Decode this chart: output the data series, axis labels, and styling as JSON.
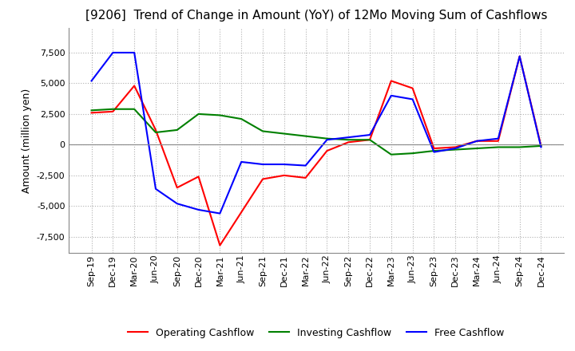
{
  "title": "[9206]  Trend of Change in Amount (YoY) of 12Mo Moving Sum of Cashflows",
  "ylabel": "Amount (million yen)",
  "x_labels": [
    "Sep-19",
    "Dec-19",
    "Mar-20",
    "Jun-20",
    "Sep-20",
    "Dec-20",
    "Mar-21",
    "Jun-21",
    "Sep-21",
    "Dec-21",
    "Mar-22",
    "Jun-22",
    "Sep-22",
    "Dec-22",
    "Mar-23",
    "Jun-23",
    "Sep-23",
    "Dec-23",
    "Mar-24",
    "Jun-24",
    "Sep-24",
    "Dec-24"
  ],
  "operating": [
    2600,
    2700,
    4800,
    1200,
    -3500,
    -2600,
    -8200,
    -5500,
    -2800,
    -2500,
    -2700,
    -500,
    200,
    400,
    5200,
    4600,
    -300,
    -200,
    300,
    300,
    7200,
    -100
  ],
  "investing": [
    2800,
    2900,
    2900,
    1000,
    1200,
    2500,
    2400,
    2100,
    1100,
    900,
    700,
    500,
    400,
    400,
    -800,
    -700,
    -500,
    -400,
    -300,
    -200,
    -200,
    -100
  ],
  "free": [
    5200,
    7500,
    7500,
    -3600,
    -4800,
    -5300,
    -5600,
    -1400,
    -1600,
    -1600,
    -1700,
    400,
    600,
    800,
    4000,
    3700,
    -600,
    -300,
    300,
    500,
    7200,
    -200
  ],
  "operating_color": "#ff0000",
  "investing_color": "#008000",
  "free_color": "#0000ff",
  "ylim": [
    -8800,
    9500
  ],
  "yticks": [
    -7500,
    -5000,
    -2500,
    0,
    2500,
    5000,
    7500
  ],
  "background_color": "#ffffff",
  "grid_color": "#b0b0b0",
  "title_fontsize": 11,
  "axis_fontsize": 9,
  "tick_fontsize": 8,
  "linewidth": 1.5
}
